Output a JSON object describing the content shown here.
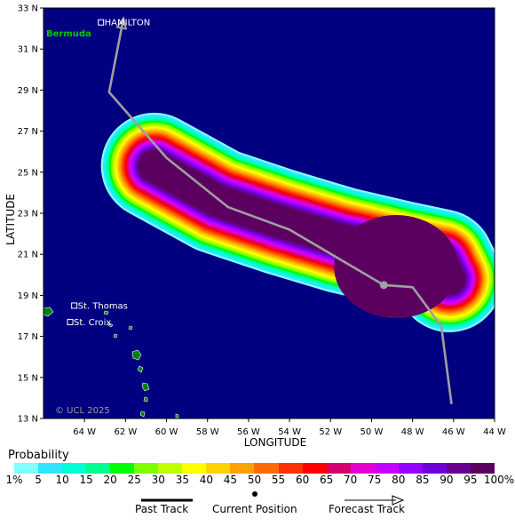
{
  "axes": {
    "xlabel": "LONGITUDE",
    "ylabel": "LATITUDE",
    "x_ticks": [
      "64 W",
      "62 W",
      "60 W",
      "58 W",
      "56 W",
      "54 W",
      "52 W",
      "50 W",
      "48 W",
      "46 W",
      "44 W"
    ],
    "y_ticks": [
      "33 N",
      "31 N",
      "29 N",
      "27 N",
      "25 N",
      "23 N",
      "21 N",
      "19 N",
      "17 N",
      "15 N",
      "13 N"
    ],
    "lon_range": [
      -66,
      -44
    ],
    "lat_range": [
      13,
      33
    ]
  },
  "places": [
    {
      "name": "HAMILTON",
      "lon": -63.2,
      "lat": 32.3
    },
    {
      "name": "St. Thomas",
      "lon": -64.5,
      "lat": 18.5
    },
    {
      "name": "St. Croix",
      "lon": -64.7,
      "lat": 17.7
    }
  ],
  "region_label": "Bermuda",
  "copyright": "© UCL 2025",
  "track": [
    {
      "lon": -46.1,
      "lat": 13.7,
      "kind": "past"
    },
    {
      "lon": -46.6,
      "lat": 17.5,
      "kind": "past"
    },
    {
      "lon": -48.0,
      "lat": 19.4,
      "kind": "past"
    },
    {
      "lon": -49.4,
      "lat": 19.5,
      "kind": "current"
    },
    {
      "lon": -54.0,
      "lat": 22.2,
      "kind": "forecast"
    },
    {
      "lon": -57.0,
      "lat": 23.3,
      "kind": "forecast"
    },
    {
      "lon": -60.0,
      "lat": 25.7,
      "kind": "forecast"
    },
    {
      "lon": -62.8,
      "lat": 28.9,
      "kind": "forecast"
    },
    {
      "lon": -62.1,
      "lat": 32.5,
      "kind": "forecast"
    }
  ],
  "probability": {
    "title": "Probability",
    "levels": [
      "1%",
      "5",
      "10",
      "15",
      "20",
      "25",
      "30",
      "35",
      "40",
      "45",
      "50",
      "55",
      "60",
      "65",
      "70",
      "75",
      "80",
      "85",
      "90",
      "95",
      "100%"
    ],
    "colors": [
      "#80ffff",
      "#2ee6ff",
      "#00ffd8",
      "#00ff90",
      "#00ff00",
      "#80ff00",
      "#bfff00",
      "#ffff00",
      "#ffd200",
      "#ffa200",
      "#ff6a00",
      "#ff3000",
      "#ff0000",
      "#d6006e",
      "#e600d0",
      "#c800ff",
      "#9600ff",
      "#7000d8",
      "#6a0090",
      "#5c0060"
    ]
  },
  "colors": {
    "ocean": "#000080",
    "land": "#008000",
    "track": "#a0a0a0"
  },
  "legend": {
    "past": "Past Track",
    "current": "Current Position",
    "forecast": "Forecast Track"
  }
}
